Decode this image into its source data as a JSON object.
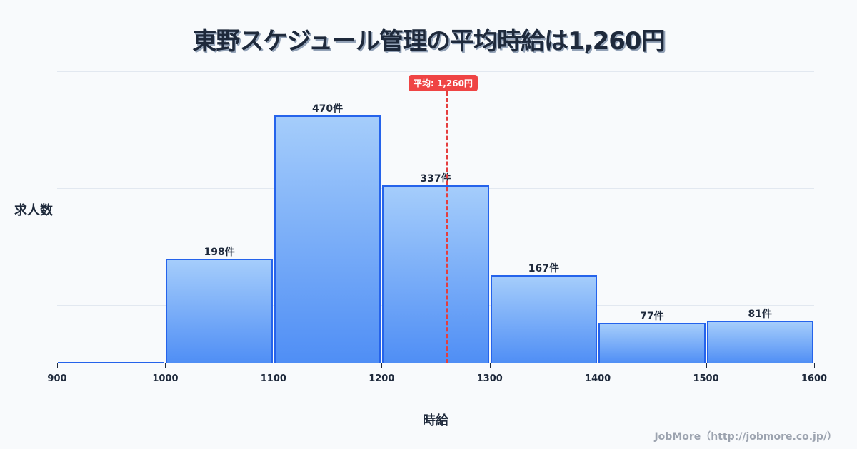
{
  "title": "東野スケジュール管理の平均時給は1,260円",
  "mean_badge": "平均: 1,260円",
  "y_axis_label": "求人数",
  "x_axis_label": "時給",
  "credit": "JobMore（http://jobmore.co.jp/）",
  "bars": [
    {
      "range": "900-1000",
      "label": "",
      "value": 0
    },
    {
      "range": "1000-1100",
      "label": "198件",
      "value": 198
    },
    {
      "range": "1100-1200",
      "label": "470件",
      "value": 470
    },
    {
      "range": "1200-1300",
      "label": "337件",
      "value": 337
    },
    {
      "range": "1300-1400",
      "label": "167件",
      "value": 167
    },
    {
      "range": "1400-1500",
      "label": "77件",
      "value": 77
    },
    {
      "range": "1500-1600",
      "label": "81件",
      "value": 81
    }
  ],
  "ticks": [
    "900",
    "1000",
    "1100",
    "1200",
    "1300",
    "1400",
    "1500",
    "1600"
  ],
  "colors": {
    "bar_border": "#2563eb",
    "bar_top": "#a5cdfb",
    "bar_bottom": "#4f8ef5",
    "mean": "#ef4444"
  },
  "chart_data": {
    "type": "bar",
    "title": "東野スケジュール管理の平均時給は1,260円",
    "xlabel": "時給",
    "ylabel": "求人数",
    "categories": [
      "900-1000",
      "1000-1100",
      "1100-1200",
      "1200-1300",
      "1300-1400",
      "1400-1500",
      "1500-1600"
    ],
    "values": [
      0,
      198,
      470,
      337,
      167,
      77,
      81
    ],
    "x_ticks": [
      900,
      1000,
      1100,
      1200,
      1300,
      1400,
      1500,
      1600
    ],
    "xlim": [
      900,
      1600
    ],
    "annotations": [
      {
        "type": "vline",
        "x": 1260,
        "label": "平均: 1,260円",
        "style": "dashed",
        "color": "#ef4444"
      }
    ],
    "grid": true
  }
}
